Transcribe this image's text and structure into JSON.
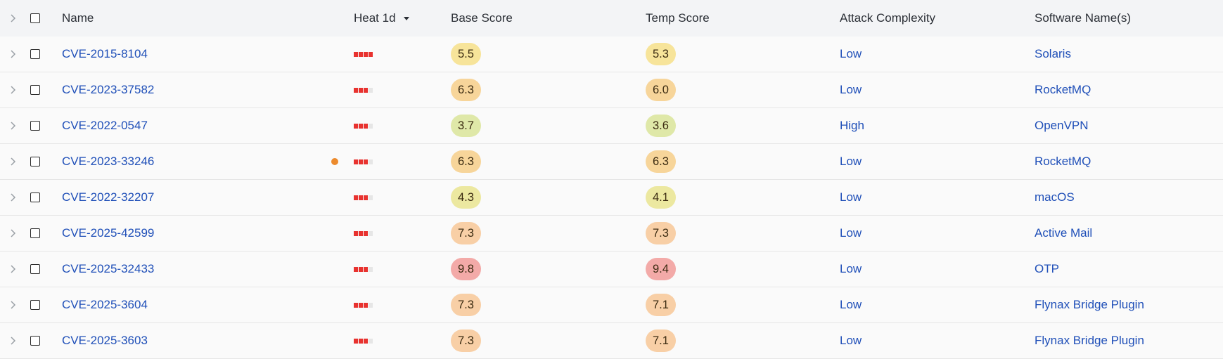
{
  "header": {
    "name": "Name",
    "heat": "Heat 1d",
    "base_score": "Base Score",
    "temp_score": "Temp Score",
    "attack_complexity": "Attack Complexity",
    "software": "Software Name(s)"
  },
  "colors": {
    "link": "#1f4fb8",
    "heat_on": "#e8322f",
    "heat_off": "#e6e6e6",
    "indicator_dot": "#ec8a2c"
  },
  "rows": [
    {
      "name": "CVE-2015-8104",
      "heat_level": 4,
      "base": "5.5",
      "temp": "5.3",
      "base_color": "#f7e49a",
      "temp_color": "#f7e49a",
      "attack": "Low",
      "software": "Solaris",
      "dot": false
    },
    {
      "name": "CVE-2023-37582",
      "heat_level": 3,
      "base": "6.3",
      "temp": "6.0",
      "base_color": "#f7d59a",
      "temp_color": "#f7d59a",
      "attack": "Low",
      "software": "RocketMQ",
      "dot": false
    },
    {
      "name": "CVE-2022-0547",
      "heat_level": 3,
      "base": "3.7",
      "temp": "3.6",
      "base_color": "#dfe8a8",
      "temp_color": "#dfe8a8",
      "attack": "High",
      "software": "OpenVPN",
      "dot": false
    },
    {
      "name": "CVE-2023-33246",
      "heat_level": 3,
      "base": "6.3",
      "temp": "6.3",
      "base_color": "#f7d59a",
      "temp_color": "#f7d59a",
      "attack": "Low",
      "software": "RocketMQ",
      "dot": true
    },
    {
      "name": "CVE-2022-32207",
      "heat_level": 3,
      "base": "4.3",
      "temp": "4.1",
      "base_color": "#ece8a0",
      "temp_color": "#ece8a0",
      "attack": "Low",
      "software": "macOS",
      "dot": false
    },
    {
      "name": "CVE-2025-42599",
      "heat_level": 3,
      "base": "7.3",
      "temp": "7.3",
      "base_color": "#f8cfa6",
      "temp_color": "#f8cfa6",
      "attack": "Low",
      "software": "Active Mail",
      "dot": false
    },
    {
      "name": "CVE-2025-32433",
      "heat_level": 3,
      "base": "9.8",
      "temp": "9.4",
      "base_color": "#f3aaa8",
      "temp_color": "#f3aaa8",
      "attack": "Low",
      "software": "OTP",
      "dot": false
    },
    {
      "name": "CVE-2025-3604",
      "heat_level": 3,
      "base": "7.3",
      "temp": "7.1",
      "base_color": "#f8cfa6",
      "temp_color": "#f8cfa6",
      "attack": "Low",
      "software": "Flynax Bridge Plugin",
      "dot": false
    },
    {
      "name": "CVE-2025-3603",
      "heat_level": 3,
      "base": "7.3",
      "temp": "7.1",
      "base_color": "#f8cfa6",
      "temp_color": "#f8cfa6",
      "attack": "Low",
      "software": "Flynax Bridge Plugin",
      "dot": false
    }
  ]
}
